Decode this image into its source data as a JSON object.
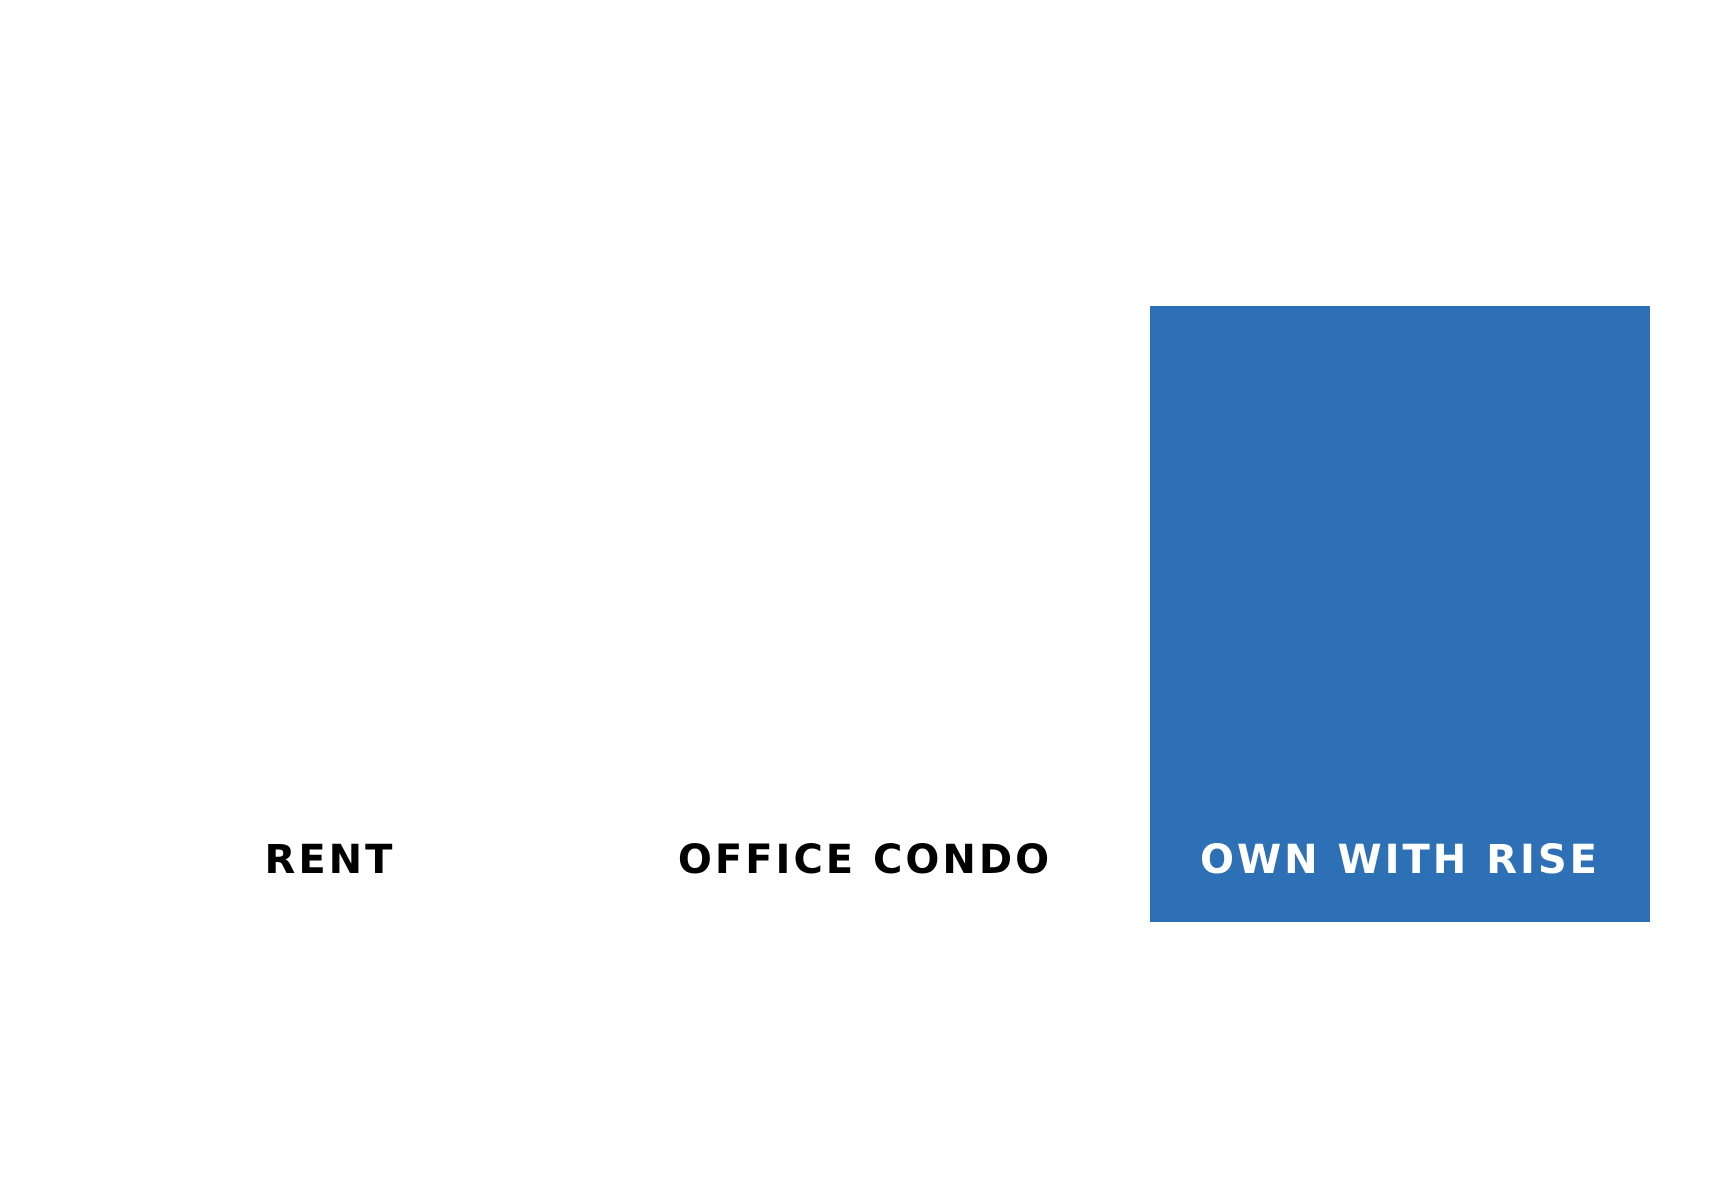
{
  "options": [
    {
      "label": "RENT",
      "selected": false
    },
    {
      "label": "OFFICE CONDO",
      "selected": false
    },
    {
      "label": "OWN WITH RISE",
      "selected": true
    }
  ],
  "colors": {
    "highlight": "#2d70b6",
    "text_default": "#000000",
    "text_highlight": "#ffffff",
    "background": "#ffffff"
  }
}
